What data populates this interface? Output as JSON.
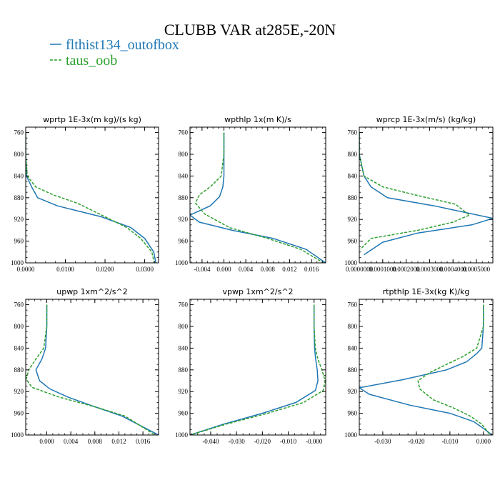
{
  "figure": {
    "title": "CLUBB VAR at285E,-20N",
    "legend": [
      {
        "label": "flthist134_outofbox",
        "color": "#1f77b4",
        "dash": "solid"
      },
      {
        "label": "taus_oob",
        "color": "#2ca02c",
        "dash": "dashed"
      }
    ]
  },
  "chart_data": [
    {
      "type": "line",
      "title": "wprtp  1E-3x(m kg)/(s kg)",
      "xlim": [
        0,
        0.0335
      ],
      "ylim": [
        1000,
        750
      ],
      "xticks": [
        0,
        0.01,
        0.02,
        0.03
      ],
      "xtick_labels": [
        "0.0000",
        "0.0100",
        "0.0200",
        "0.0300"
      ],
      "yticks": [
        760,
        800,
        840,
        880,
        920,
        960,
        1000
      ],
      "ytick_labels": [
        "760",
        "800",
        "840",
        "880",
        "920",
        "960",
        "1000"
      ],
      "series": [
        {
          "name": "flthist134_outofbox",
          "x": [
            0,
            0,
            0.0002,
            0.0015,
            0.003,
            0.008,
            0.019,
            0.0265,
            0.03,
            0.0323,
            0.0328
          ],
          "y": [
            760,
            800,
            840,
            860,
            880,
            895,
            915,
            935,
            955,
            980,
            1000
          ]
        },
        {
          "name": "taus_oob",
          "x": [
            0,
            0,
            0.0004,
            0.0025,
            0.007,
            0.013,
            0.02,
            0.0255,
            0.029,
            0.0318,
            0.0324
          ],
          "y": [
            760,
            800,
            840,
            860,
            875,
            890,
            915,
            935,
            955,
            980,
            1000
          ]
        }
      ]
    },
    {
      "type": "line",
      "title": "wpthlp  1x(m K)/s",
      "xlim": [
        -0.0062,
        0.0186
      ],
      "ylim": [
        1000,
        750
      ],
      "xticks": [
        -0.004,
        0,
        0.004,
        0.008,
        0.012,
        0.016
      ],
      "xtick_labels": [
        "-0.004",
        "0.000",
        "0.004",
        "0.008",
        "0.012",
        "0.016"
      ],
      "yticks": [
        760,
        800,
        840,
        880,
        920,
        960,
        1000
      ],
      "ytick_labels": [
        "760",
        "800",
        "840",
        "880",
        "920",
        "960",
        "1000"
      ],
      "series": [
        {
          "name": "flthist134_outofbox",
          "x": [
            0,
            0,
            0,
            -0.0002,
            -0.0008,
            -0.0025,
            -0.0062,
            -0.0045,
            0.0015,
            0.009,
            0.015,
            0.0186
          ],
          "y": [
            760,
            800,
            840,
            860,
            878,
            895,
            912,
            925,
            940,
            955,
            975,
            1000
          ]
        },
        {
          "name": "taus_oob",
          "x": [
            0,
            0,
            -0.0005,
            -0.0025,
            -0.0045,
            -0.0052,
            -0.0035,
            0.001,
            0.008,
            0.014,
            0.0182
          ],
          "y": [
            760,
            800,
            840,
            860,
            875,
            890,
            910,
            935,
            955,
            975,
            1000
          ]
        }
      ]
    },
    {
      "type": "line",
      "title": "wprcp  1E-3x(m/s) (kg/kg)",
      "xlim": [
        0,
        0.00057
      ],
      "ylim": [
        1000,
        750
      ],
      "xticks": [
        0,
        0.0001,
        0.0002,
        0.0003,
        0.0004,
        0.0005
      ],
      "xtick_labels": [
        "0.0000000",
        "0.0001000",
        "0.0002000",
        "0.0003000",
        "0.0004000",
        "0.0005000"
      ],
      "yticks": [
        760,
        800,
        840,
        880,
        920,
        960,
        1000
      ],
      "ytick_labels": [
        "760",
        "800",
        "840",
        "880",
        "920",
        "960",
        "1000"
      ],
      "series": [
        {
          "name": "flthist134_outofbox",
          "x": [
            0,
            0,
            2e-05,
            5e-05,
            0.00012,
            0.00032,
            0.00057,
            0.00048,
            0.00025,
            0.0001,
            2e-05
          ],
          "y": [
            760,
            800,
            840,
            860,
            880,
            895,
            918,
            930,
            945,
            962,
            985
          ]
        },
        {
          "name": "taus_oob",
          "x": [
            0,
            0,
            2e-05,
            0.0001,
            0.00024,
            0.00041,
            0.00047,
            0.0004,
            0.00025,
            5e-05,
            5e-06
          ],
          "y": [
            760,
            800,
            840,
            860,
            875,
            892,
            912,
            925,
            940,
            955,
            975
          ]
        }
      ]
    },
    {
      "type": "line",
      "title": "upwp  1xm^2/s^2",
      "xlim": [
        -0.0035,
        0.0186
      ],
      "ylim": [
        1000,
        750
      ],
      "xticks": [
        0,
        0.004,
        0.008,
        0.012,
        0.016
      ],
      "xtick_labels": [
        "0.000",
        "0.004",
        "0.008",
        "0.012",
        "0.016"
      ],
      "yticks": [
        760,
        800,
        840,
        880,
        920,
        960,
        1000
      ],
      "ytick_labels": [
        "760",
        "800",
        "840",
        "880",
        "920",
        "960",
        "1000"
      ],
      "series": [
        {
          "name": "flthist134_outofbox",
          "x": [
            0,
            0,
            -0.0002,
            -0.0008,
            -0.0018,
            -0.0012,
            0.0005,
            0.0035,
            0.008,
            0.0125,
            0.0186
          ],
          "y": [
            760,
            800,
            840,
            860,
            880,
            900,
            915,
            930,
            948,
            965,
            1000
          ]
        },
        {
          "name": "taus_oob",
          "x": [
            0,
            0,
            -0.0005,
            -0.0018,
            -0.003,
            -0.0034,
            -0.0025,
            0.002,
            0.008,
            0.013,
            0.018
          ],
          "y": [
            760,
            800,
            840,
            860,
            880,
            897,
            912,
            930,
            948,
            965,
            1000
          ]
        }
      ]
    },
    {
      "type": "line",
      "title": "vpwp  1xm^2/s^2",
      "xlim": [
        -0.048,
        0.0045
      ],
      "ylim": [
        1000,
        750
      ],
      "xticks": [
        -0.04,
        -0.03,
        -0.02,
        -0.01,
        0
      ],
      "xtick_labels": [
        "-0.040",
        "-0.030",
        "-0.020",
        "-0.010",
        "-0.000"
      ],
      "yticks": [
        760,
        800,
        840,
        880,
        920,
        960,
        1000
      ],
      "ytick_labels": [
        "760",
        "800",
        "840",
        "880",
        "920",
        "960",
        "1000"
      ],
      "series": [
        {
          "name": "flthist134_outofbox",
          "x": [
            0,
            0,
            0.0002,
            0.0006,
            0.0012,
            0.0015,
            0.0005,
            -0.007,
            -0.02,
            -0.035,
            -0.048
          ],
          "y": [
            760,
            800,
            840,
            860,
            880,
            900,
            918,
            940,
            960,
            980,
            1000
          ]
        },
        {
          "name": "taus_oob",
          "x": [
            0,
            0,
            0.0005,
            0.0015,
            0.003,
            0.0043,
            0.0035,
            -0.004,
            -0.018,
            -0.034,
            -0.048
          ],
          "y": [
            760,
            800,
            840,
            860,
            880,
            900,
            918,
            940,
            960,
            980,
            1000
          ]
        }
      ]
    },
    {
      "type": "line",
      "title": "rtpthlp  1E-3x(kg K)/kg",
      "xlim": [
        -0.037,
        0.0028
      ],
      "ylim": [
        1000,
        750
      ],
      "xticks": [
        -0.03,
        -0.02,
        -0.01,
        0
      ],
      "xtick_labels": [
        "-0.030",
        "-0.020",
        "-0.010",
        "0.000"
      ],
      "yticks": [
        760,
        800,
        840,
        880,
        920,
        960,
        1000
      ],
      "ytick_labels": [
        "760",
        "800",
        "840",
        "880",
        "920",
        "960",
        "1000"
      ],
      "series": [
        {
          "name": "flthist134_outofbox",
          "x": [
            0,
            0,
            -0.0005,
            -0.002,
            -0.005,
            -0.011,
            -0.024,
            -0.037,
            -0.034,
            -0.022,
            -0.01,
            -0.003,
            0.0005,
            0.0025
          ],
          "y": [
            760,
            800,
            840,
            850,
            865,
            880,
            898,
            913,
            925,
            945,
            960,
            975,
            990,
            1000
          ]
        },
        {
          "name": "taus_oob",
          "x": [
            0,
            0,
            -0.002,
            -0.006,
            -0.011,
            -0.016,
            -0.0195,
            -0.019,
            -0.015,
            -0.009,
            -0.004,
            -0.0005,
            0.002
          ],
          "y": [
            760,
            800,
            840,
            855,
            870,
            885,
            900,
            915,
            935,
            950,
            965,
            980,
            1000
          ]
        }
      ]
    }
  ]
}
